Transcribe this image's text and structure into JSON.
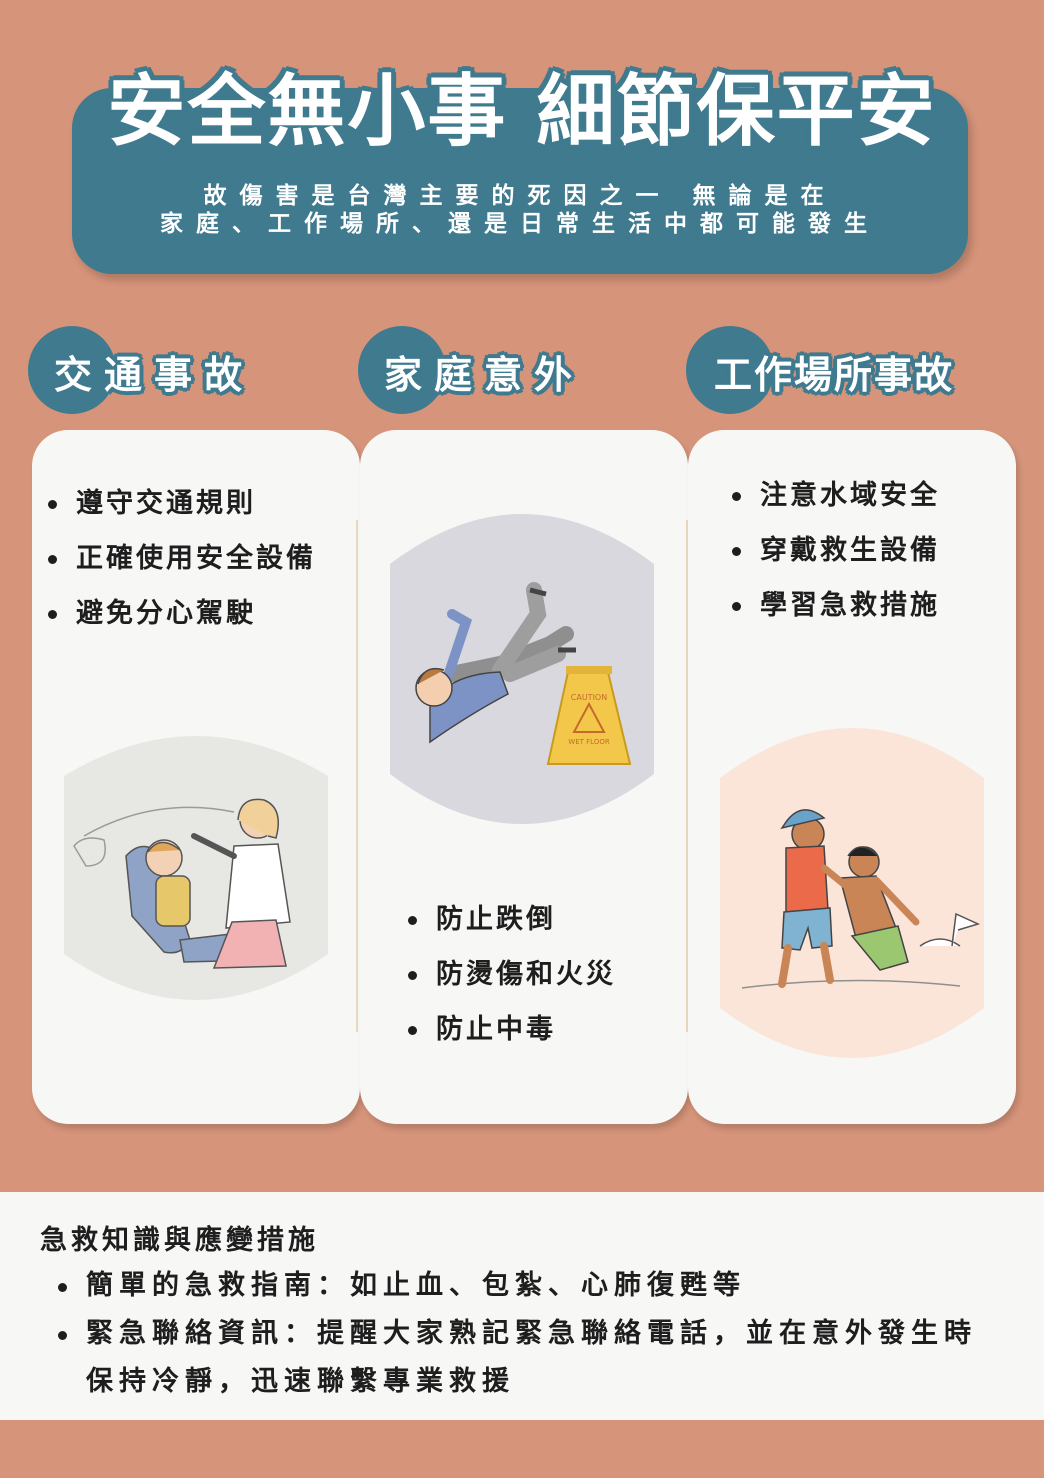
{
  "header": {
    "title": "安全無小事 細節保平安",
    "subtitle_line1": "故傷害是台灣主要的死因之一 無論是在",
    "subtitle_line2": "家庭、工作場所、還是日常生活中都可能發生"
  },
  "categories": [
    {
      "title": "交通事故",
      "items": [
        "遵守交通規則",
        "正確使用安全設備",
        "避免分心駕駛"
      ]
    },
    {
      "title": "家庭意外",
      "items": [
        "防止跌倒",
        "防燙傷和火災",
        "防止中毒"
      ],
      "sign_top": "CAUTION",
      "sign_bottom": "WET FLOOR"
    },
    {
      "title": "工作場所事故",
      "items": [
        "注意水域安全",
        "穿戴救生設備",
        "學習急救措施"
      ]
    }
  ],
  "first_aid": {
    "heading": "急救知識與應變措施",
    "items": [
      "簡單的急救指南：如止血、包紮、心肺復甦等",
      "緊急聯絡資訊：提醒大家熟記緊急聯絡電話，並在意外發生時保持冷靜，迅速聯繫專業救援"
    ]
  },
  "colors": {
    "background": "#d6947a",
    "accent": "#3f7a8f",
    "card": "#f7f7f5"
  }
}
